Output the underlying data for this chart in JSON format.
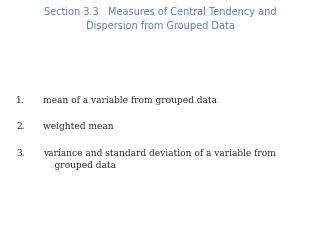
{
  "title_line1": "Section 3.3   Measures of Central Tendency and",
  "title_line2": "Dispersion from Grouped Data",
  "title_color": "#5B7DB1",
  "title_fontsize": 7.0,
  "background_color": "#ffffff",
  "items": [
    "mean of a variable from grouped data",
    "weighted mean",
    "variance and standard deviation of a variable from\n    grouped data"
  ],
  "item_color": "#222222",
  "item_fontsize": 6.5,
  "numbers": [
    "1.",
    "2.",
    "3."
  ]
}
